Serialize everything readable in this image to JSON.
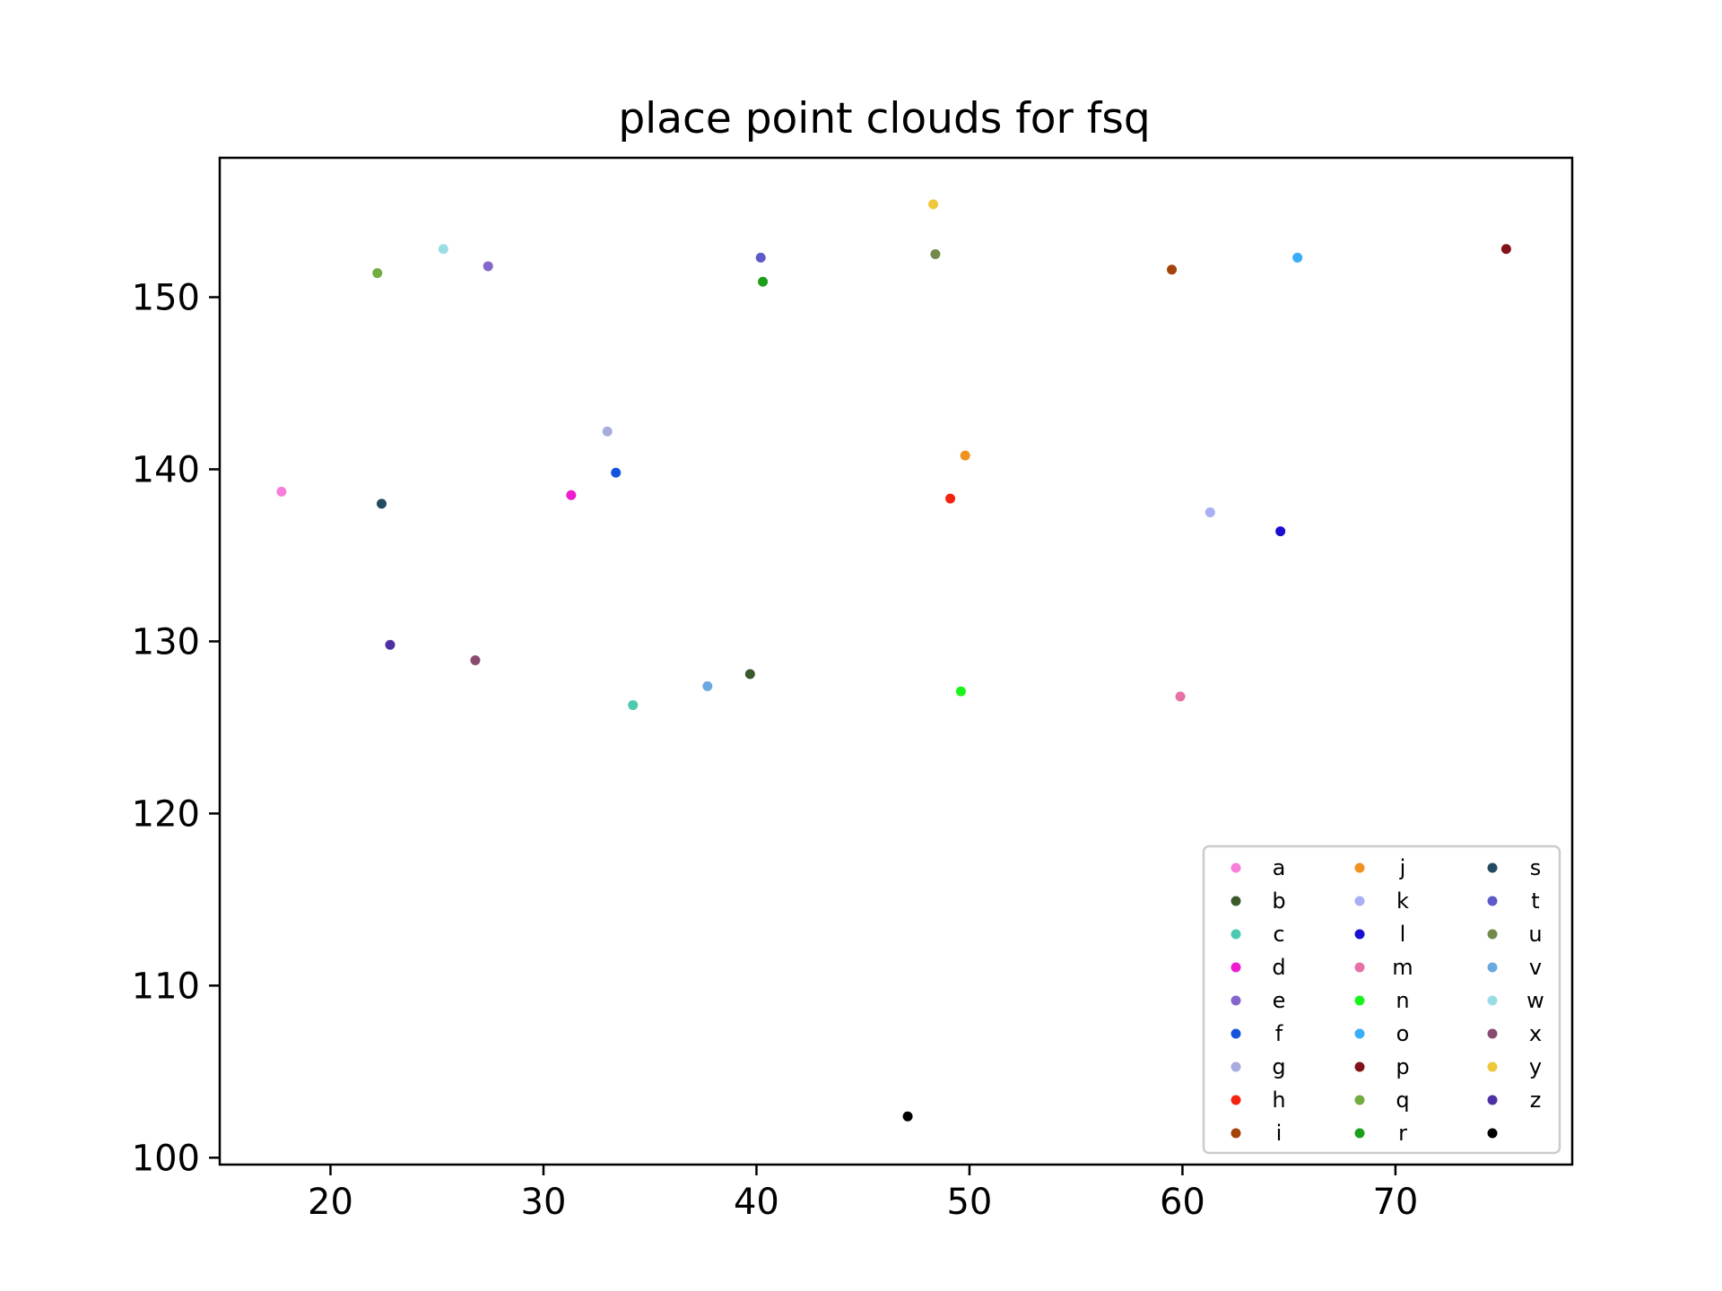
{
  "chart_data": {
    "type": "scatter",
    "title": "place point clouds for fsq",
    "xlabel": "",
    "ylabel": "",
    "xlim": [
      14.8,
      78.3
    ],
    "ylim": [
      99.6,
      158.1
    ],
    "xticks": [
      20,
      30,
      40,
      50,
      60,
      70
    ],
    "yticks": [
      100,
      110,
      120,
      130,
      140,
      150
    ],
    "grid": false,
    "legend": {
      "placement": "lower-right",
      "columns": 3
    },
    "series": [
      {
        "name": "a",
        "color": "#f67fd9",
        "x": [
          17.7
        ],
        "y": [
          138.7
        ]
      },
      {
        "name": "b",
        "color": "#3a5a2e",
        "x": [
          39.7
        ],
        "y": [
          128.1
        ]
      },
      {
        "name": "c",
        "color": "#4cc9b0",
        "x": [
          34.2
        ],
        "y": [
          126.3
        ]
      },
      {
        "name": "d",
        "color": "#ee1bd0",
        "x": [
          31.3
        ],
        "y": [
          138.5
        ]
      },
      {
        "name": "e",
        "color": "#8566cc",
        "x": [
          27.4
        ],
        "y": [
          151.8
        ]
      },
      {
        "name": "f",
        "color": "#1454dc",
        "x": [
          33.4
        ],
        "y": [
          139.8
        ]
      },
      {
        "name": "g",
        "color": "#a8acdc",
        "x": [
          33.0
        ],
        "y": [
          142.2
        ]
      },
      {
        "name": "h",
        "color": "#f42310",
        "x": [
          49.1
        ],
        "y": [
          138.3
        ]
      },
      {
        "name": "i",
        "color": "#a4420c",
        "x": [
          59.5
        ],
        "y": [
          151.6
        ]
      },
      {
        "name": "j",
        "color": "#f0921e",
        "x": [
          49.8
        ],
        "y": [
          140.8
        ]
      },
      {
        "name": "k",
        "color": "#a9aff2",
        "x": [
          61.3
        ],
        "y": [
          137.5
        ]
      },
      {
        "name": "l",
        "color": "#1a0fd0",
        "x": [
          64.6
        ],
        "y": [
          136.4
        ]
      },
      {
        "name": "m",
        "color": "#e770a4",
        "x": [
          59.9
        ],
        "y": [
          126.8
        ]
      },
      {
        "name": "n",
        "color": "#19f51b",
        "x": [
          49.6
        ],
        "y": [
          127.1
        ]
      },
      {
        "name": "o",
        "color": "#39adf8",
        "x": [
          65.4
        ],
        "y": [
          152.3
        ]
      },
      {
        "name": "p",
        "color": "#82111a",
        "x": [
          75.2
        ],
        "y": [
          152.8
        ]
      },
      {
        "name": "q",
        "color": "#72ad43",
        "x": [
          22.2
        ],
        "y": [
          151.4
        ]
      },
      {
        "name": "r",
        "color": "#1a9f1b",
        "x": [
          40.3
        ],
        "y": [
          150.9
        ]
      },
      {
        "name": "s",
        "color": "#234b62",
        "x": [
          22.4
        ],
        "y": [
          138.0
        ]
      },
      {
        "name": "t",
        "color": "#5e5acb",
        "x": [
          40.2
        ],
        "y": [
          152.3
        ]
      },
      {
        "name": "u",
        "color": "#738a4b",
        "x": [
          48.4
        ],
        "y": [
          152.5
        ]
      },
      {
        "name": "v",
        "color": "#6aa9df",
        "x": [
          37.7
        ],
        "y": [
          127.4
        ]
      },
      {
        "name": "w",
        "color": "#99dee4",
        "x": [
          25.3
        ],
        "y": [
          152.8
        ]
      },
      {
        "name": "x",
        "color": "#8a4c6e",
        "x": [
          26.8
        ],
        "y": [
          128.9
        ]
      },
      {
        "name": "y",
        "color": "#f0c73a",
        "x": [
          48.3
        ],
        "y": [
          155.4
        ]
      },
      {
        "name": "z",
        "color": "#4c31a4",
        "x": [
          22.8
        ],
        "y": [
          129.8
        ]
      },
      {
        "name": "",
        "color": "#000000",
        "x": [
          47.1
        ],
        "y": [
          102.4
        ]
      }
    ]
  }
}
